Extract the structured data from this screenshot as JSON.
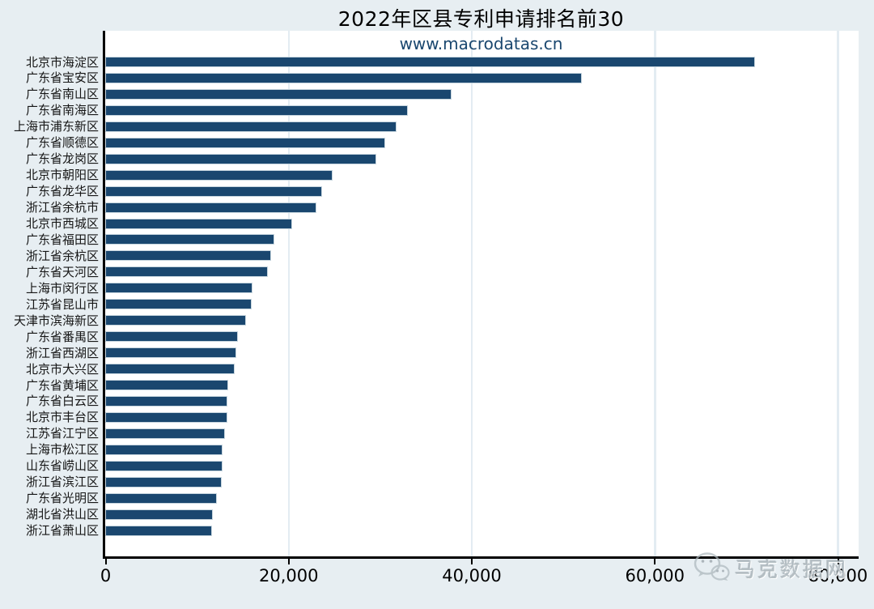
{
  "chart": {
    "title": "2022年区县专利申请排名前30",
    "subtitle": "www.macrodatas.cn",
    "watermark_text": "马克数据网",
    "watermark_icon": "wechat-icon"
  },
  "chart_data": {
    "type": "bar",
    "orientation": "horizontal",
    "title": "2022年区县专利申请排名前30",
    "subtitle": "www.macrodatas.cn",
    "categories": [
      "北京市海淀区",
      "广东省宝安区",
      "广东省南山区",
      "广东省南海区",
      "上海市浦东新区",
      "广东省顺德区",
      "广东省龙岗区",
      "北京市朝阳区",
      "广东省龙华区",
      "浙江省余杭市",
      "北京市西城区",
      "广东省福田区",
      "浙江省余杭区",
      "广东省天河区",
      "上海市闵行区",
      "江苏省昆山市",
      "天津市滨海新区",
      "广东省番禺区",
      "浙江省西湖区",
      "北京市大兴区",
      "广东省黄埔区",
      "广东省白云区",
      "北京市丰台区",
      "江苏省江宁区",
      "上海市松江区",
      "山东省崂山区",
      "浙江省滨江区",
      "广东省光明区",
      "湖北省洪山区",
      "浙江省萧山区"
    ],
    "values": [
      71000,
      52100,
      37800,
      33100,
      31800,
      30600,
      29600,
      24800,
      23700,
      23100,
      20400,
      18500,
      18100,
      17800,
      16100,
      16000,
      15400,
      14500,
      14300,
      14150,
      13420,
      13370,
      13330,
      13040,
      12840,
      12780,
      12700,
      12240,
      11800,
      11700
    ],
    "xlabel": "",
    "ylabel": "",
    "xlim": [
      0,
      82000
    ],
    "xticks": [
      0,
      20000,
      40000,
      60000,
      80000
    ],
    "xtick_labels": [
      "0",
      "20,000",
      "40,000",
      "60,000",
      "80,000"
    ],
    "grid": "vertical-gridlines-on",
    "legend": "none",
    "bar_color": "#1a476f",
    "bar_outline_color": "#c6d5de",
    "background_color": "#e7eef2",
    "plot_background_color": "#ffffff",
    "gridline_color": "#e3ecf2",
    "subtitle_color": "#1a476f",
    "watermark_color": "#adb7bd"
  }
}
